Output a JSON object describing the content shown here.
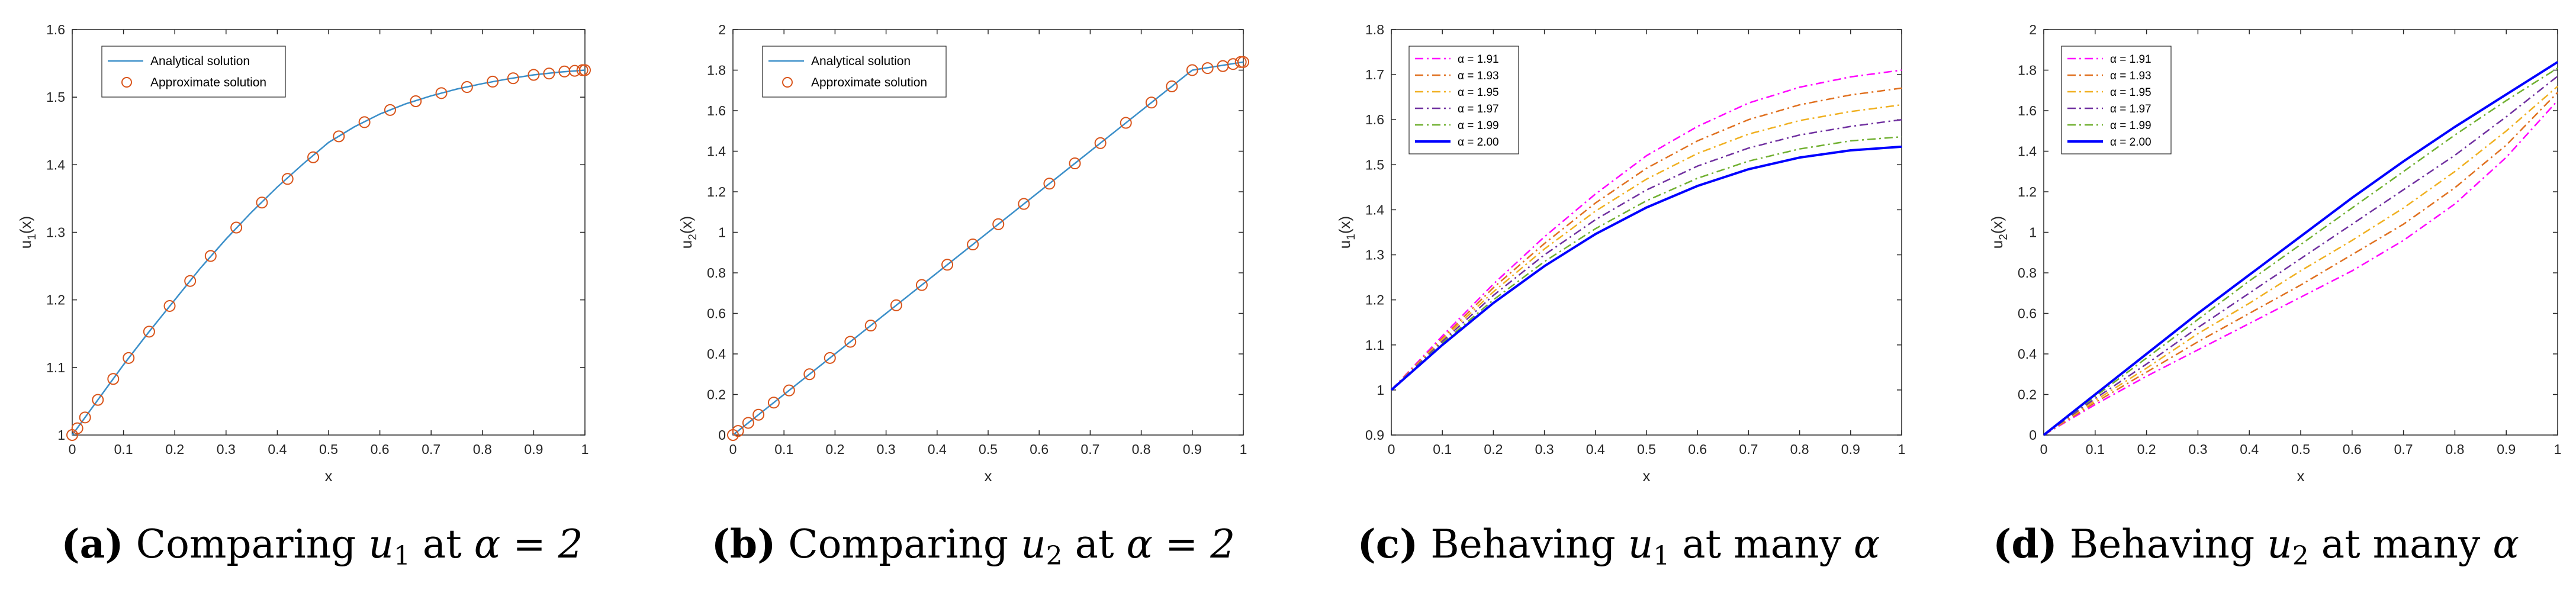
{
  "chart_data": [
    {
      "type": "line",
      "id": "a",
      "xlabel": "x",
      "ylabel": "u_1(x)",
      "ylabel_main": "u",
      "ylabel_sub": "1",
      "ylabel_tail": "(x)",
      "xlim": [
        0,
        1
      ],
      "ylim": [
        1,
        1.6
      ],
      "xticks": [
        "0",
        "0.1",
        "0.2",
        "0.3",
        "0.4",
        "0.5",
        "0.6",
        "0.7",
        "0.8",
        "0.9",
        "1"
      ],
      "yticks": [
        "1",
        "1.1",
        "1.2",
        "1.3",
        "1.4",
        "1.5",
        "1.6"
      ],
      "legend": {
        "position": "top-left",
        "entries": [
          {
            "label": "Analytical solution",
            "style": "line",
            "color": "#3b8fc9"
          },
          {
            "label": "Approximate solution",
            "style": "circle",
            "color": "#d9541a"
          }
        ]
      },
      "series": [
        {
          "name": "Analytical solution",
          "style": "solid",
          "color": "#3b8fc9",
          "x": [
            0,
            0.05,
            0.1,
            0.15,
            0.2,
            0.25,
            0.3,
            0.35,
            0.4,
            0.45,
            0.5,
            0.55,
            0.6,
            0.65,
            0.7,
            0.75,
            0.8,
            0.85,
            0.9,
            0.95,
            1
          ],
          "y": [
            1,
            1.052,
            1.104,
            1.153,
            1.2,
            1.247,
            1.29,
            1.33,
            1.367,
            1.401,
            1.433,
            1.456,
            1.475,
            1.49,
            1.502,
            1.512,
            1.52,
            1.527,
            1.533,
            1.537,
            1.54
          ]
        },
        {
          "name": "Approximate solution",
          "style": "circle",
          "color": "#d9541a",
          "x": [
            0,
            0.01,
            0.025,
            0.05,
            0.08,
            0.11,
            0.15,
            0.19,
            0.23,
            0.27,
            0.32,
            0.37,
            0.42,
            0.47,
            0.52,
            0.57,
            0.62,
            0.67,
            0.72,
            0.77,
            0.82,
            0.86,
            0.9,
            0.93,
            0.96,
            0.98,
            0.995,
            1
          ],
          "y": [
            1,
            1.01,
            1.026,
            1.052,
            1.083,
            1.114,
            1.153,
            1.191,
            1.228,
            1.265,
            1.307,
            1.344,
            1.379,
            1.411,
            1.442,
            1.463,
            1.481,
            1.494,
            1.506,
            1.515,
            1.523,
            1.528,
            1.533,
            1.535,
            1.538,
            1.539,
            1.54,
            1.54
          ]
        }
      ]
    },
    {
      "type": "line",
      "id": "b",
      "xlabel": "x",
      "ylabel": "u_2(x)",
      "ylabel_main": "u",
      "ylabel_sub": "2",
      "ylabel_tail": "(x)",
      "xlim": [
        0,
        1
      ],
      "ylim": [
        0,
        2
      ],
      "xticks": [
        "0",
        "0.1",
        "0.2",
        "0.3",
        "0.4",
        "0.5",
        "0.6",
        "0.7",
        "0.8",
        "0.9",
        "1"
      ],
      "yticks": [
        "0",
        "0.2",
        "0.4",
        "0.6",
        "0.8",
        "1",
        "1.2",
        "1.4",
        "1.6",
        "1.8",
        "2"
      ],
      "legend": {
        "position": "top-left",
        "entries": [
          {
            "label": "Analytical solution",
            "style": "line",
            "color": "#3b8fc9"
          },
          {
            "label": "Approximate solution",
            "style": "circle",
            "color": "#d9541a"
          }
        ]
      },
      "series": [
        {
          "name": "Analytical solution",
          "style": "solid",
          "color": "#3b8fc9",
          "x": [
            0,
            0.1,
            0.2,
            0.3,
            0.4,
            0.5,
            0.6,
            0.7,
            0.8,
            0.9,
            1
          ],
          "y": [
            0,
            0.2,
            0.4,
            0.6,
            0.8,
            1,
            1.2,
            1.4,
            1.6,
            1.8,
            1.84
          ]
        },
        {
          "name": "Approximate solution",
          "style": "circle",
          "color": "#d9541a",
          "x": [
            0,
            0.01,
            0.03,
            0.05,
            0.08,
            0.11,
            0.15,
            0.19,
            0.23,
            0.27,
            0.32,
            0.37,
            0.42,
            0.47,
            0.52,
            0.57,
            0.62,
            0.67,
            0.72,
            0.77,
            0.82,
            0.86,
            0.9,
            0.93,
            0.96,
            0.98,
            0.995,
            1
          ],
          "y": [
            0,
            0.02,
            0.06,
            0.1,
            0.16,
            0.22,
            0.3,
            0.38,
            0.46,
            0.54,
            0.64,
            0.74,
            0.84,
            0.94,
            1.04,
            1.14,
            1.24,
            1.34,
            1.44,
            1.54,
            1.64,
            1.72,
            1.8,
            1.81,
            1.82,
            1.83,
            1.84,
            1.84
          ]
        }
      ]
    },
    {
      "type": "line",
      "id": "c",
      "xlabel": "x",
      "ylabel": "u_1(x)",
      "ylabel_main": "u",
      "ylabel_sub": "1",
      "ylabel_tail": "(x)",
      "xlim": [
        0,
        1
      ],
      "ylim": [
        0.9,
        1.8
      ],
      "xticks": [
        "0",
        "0.1",
        "0.2",
        "0.3",
        "0.4",
        "0.5",
        "0.6",
        "0.7",
        "0.8",
        "0.9",
        "1"
      ],
      "yticks": [
        "0.9",
        "1",
        "1.1",
        "1.2",
        "1.3",
        "1.4",
        "1.5",
        "1.6",
        "1.7",
        "1.8"
      ],
      "legend": {
        "position": "top-left",
        "entries": [
          {
            "label": "α = 1.91",
            "style": "dashdot",
            "color": "#ff00ff"
          },
          {
            "label": "α = 1.93",
            "style": "dashdot",
            "color": "#e0701f"
          },
          {
            "label": "α = 1.95",
            "style": "dashdot",
            "color": "#f0b020"
          },
          {
            "label": "α = 1.97",
            "style": "dashdot",
            "color": "#7030a0"
          },
          {
            "label": "α = 1.99",
            "style": "dashdot",
            "color": "#70b030"
          },
          {
            "label": "α = 2.00",
            "style": "solid",
            "color": "#0000ff"
          }
        ]
      },
      "series": [
        {
          "name": "α = 1.91",
          "style": "dashdot",
          "color": "#ff00ff",
          "x": [
            0,
            0.1,
            0.2,
            0.3,
            0.4,
            0.5,
            0.6,
            0.7,
            0.8,
            0.9,
            1
          ],
          "y": [
            1,
            1.12,
            1.235,
            1.34,
            1.435,
            1.52,
            1.585,
            1.637,
            1.672,
            1.695,
            1.71
          ]
        },
        {
          "name": "α = 1.93",
          "style": "dashdot",
          "color": "#e0701f",
          "x": [
            0,
            0.1,
            0.2,
            0.3,
            0.4,
            0.5,
            0.6,
            0.7,
            0.8,
            0.9,
            1
          ],
          "y": [
            1,
            1.115,
            1.227,
            1.325,
            1.415,
            1.492,
            1.553,
            1.6,
            1.633,
            1.655,
            1.67
          ]
        },
        {
          "name": "α = 1.95",
          "style": "dashdot",
          "color": "#f0b020",
          "x": [
            0,
            0.1,
            0.2,
            0.3,
            0.4,
            0.5,
            0.6,
            0.7,
            0.8,
            0.9,
            1
          ],
          "y": [
            1,
            1.112,
            1.218,
            1.313,
            1.397,
            1.468,
            1.525,
            1.568,
            1.598,
            1.618,
            1.633
          ]
        },
        {
          "name": "α = 1.97",
          "style": "dashdot",
          "color": "#7030a0",
          "x": [
            0,
            0.1,
            0.2,
            0.3,
            0.4,
            0.5,
            0.6,
            0.7,
            0.8,
            0.9,
            1
          ],
          "y": [
            1,
            1.108,
            1.21,
            1.3,
            1.378,
            1.444,
            1.497,
            1.537,
            1.566,
            1.585,
            1.6
          ]
        },
        {
          "name": "α = 1.99",
          "style": "dashdot",
          "color": "#70b030",
          "x": [
            0,
            0.1,
            0.2,
            0.3,
            0.4,
            0.5,
            0.6,
            0.7,
            0.8,
            0.9,
            1
          ],
          "y": [
            1,
            1.104,
            1.2,
            1.285,
            1.358,
            1.42,
            1.47,
            1.508,
            1.535,
            1.553,
            1.562
          ]
        },
        {
          "name": "α = 2.00",
          "style": "solid",
          "color": "#0000ff",
          "x": [
            0,
            0.1,
            0.2,
            0.3,
            0.4,
            0.5,
            0.6,
            0.7,
            0.8,
            0.9,
            1
          ],
          "y": [
            1,
            1.1,
            1.193,
            1.275,
            1.346,
            1.405,
            1.453,
            1.49,
            1.516,
            1.532,
            1.54
          ]
        }
      ]
    },
    {
      "type": "line",
      "id": "d",
      "xlabel": "x",
      "ylabel": "u_2(x)",
      "ylabel_main": "u",
      "ylabel_sub": "2",
      "ylabel_tail": "(x)",
      "xlim": [
        0,
        1
      ],
      "ylim": [
        0,
        2
      ],
      "xticks": [
        "0",
        "0.1",
        "0.2",
        "0.3",
        "0.4",
        "0.5",
        "0.6",
        "0.7",
        "0.8",
        "0.9",
        "1"
      ],
      "yticks": [
        "0",
        "0.2",
        "0.4",
        "0.6",
        "0.8",
        "1",
        "1.2",
        "1.4",
        "1.6",
        "1.8",
        "2"
      ],
      "legend": {
        "position": "top-left",
        "entries": [
          {
            "label": "α = 1.91",
            "style": "dashdot",
            "color": "#ff00ff"
          },
          {
            "label": "α = 1.93",
            "style": "dashdot",
            "color": "#e0701f"
          },
          {
            "label": "α = 1.95",
            "style": "dashdot",
            "color": "#f0b020"
          },
          {
            "label": "α = 1.97",
            "style": "dashdot",
            "color": "#7030a0"
          },
          {
            "label": "α = 1.99",
            "style": "dashdot",
            "color": "#70b030"
          },
          {
            "label": "α = 2.00",
            "style": "solid",
            "color": "#0000ff"
          }
        ]
      },
      "series": [
        {
          "name": "α = 1.91",
          "style": "dashdot",
          "color": "#ff00ff",
          "x": [
            0,
            0.1,
            0.2,
            0.3,
            0.4,
            0.5,
            0.6,
            0.7,
            0.8,
            0.9,
            1
          ],
          "y": [
            0,
            0.15,
            0.29,
            0.42,
            0.55,
            0.68,
            0.81,
            0.96,
            1.14,
            1.37,
            1.65
          ]
        },
        {
          "name": "α = 1.93",
          "style": "dashdot",
          "color": "#e0701f",
          "x": [
            0,
            0.1,
            0.2,
            0.3,
            0.4,
            0.5,
            0.6,
            0.7,
            0.8,
            0.9,
            1
          ],
          "y": [
            0,
            0.16,
            0.31,
            0.46,
            0.6,
            0.74,
            0.89,
            1.04,
            1.22,
            1.43,
            1.69
          ]
        },
        {
          "name": "α = 1.95",
          "style": "dashdot",
          "color": "#f0b020",
          "x": [
            0,
            0.1,
            0.2,
            0.3,
            0.4,
            0.5,
            0.6,
            0.7,
            0.8,
            0.9,
            1
          ],
          "y": [
            0,
            0.17,
            0.33,
            0.5,
            0.65,
            0.81,
            0.96,
            1.12,
            1.3,
            1.5,
            1.72
          ]
        },
        {
          "name": "α = 1.97",
          "style": "dashdot",
          "color": "#7030a0",
          "x": [
            0,
            0.1,
            0.2,
            0.3,
            0.4,
            0.5,
            0.6,
            0.7,
            0.8,
            0.9,
            1
          ],
          "y": [
            0,
            0.18,
            0.35,
            0.53,
            0.7,
            0.87,
            1.04,
            1.21,
            1.38,
            1.57,
            1.77
          ]
        },
        {
          "name": "α = 1.99",
          "style": "dashdot",
          "color": "#70b030",
          "x": [
            0,
            0.1,
            0.2,
            0.3,
            0.4,
            0.5,
            0.6,
            0.7,
            0.8,
            0.9,
            1
          ],
          "y": [
            0,
            0.19,
            0.38,
            0.57,
            0.76,
            0.94,
            1.12,
            1.3,
            1.48,
            1.65,
            1.81
          ]
        },
        {
          "name": "α = 2.00",
          "style": "solid",
          "color": "#0000ff",
          "x": [
            0,
            0.1,
            0.2,
            0.3,
            0.4,
            0.5,
            0.6,
            0.7,
            0.8,
            0.9,
            1
          ],
          "y": [
            0,
            0.2,
            0.4,
            0.6,
            0.79,
            0.98,
            1.17,
            1.35,
            1.52,
            1.68,
            1.84
          ]
        }
      ]
    }
  ],
  "captions": [
    {
      "letter": "(a)",
      "text_before": "Comparing",
      "var": "u",
      "sub": "1",
      "text_after": "at",
      "cond": "α = 2"
    },
    {
      "letter": "(b)",
      "text_before": "Comparing",
      "var": "u",
      "sub": "2",
      "text_after": "at",
      "cond": "α = 2"
    },
    {
      "letter": "(c)",
      "text_before": "Behaving",
      "var": "u",
      "sub": "1",
      "text_after": "at many",
      "cond": "α"
    },
    {
      "letter": "(d)",
      "text_before": "Behaving",
      "var": "u",
      "sub": "2",
      "text_after": "at many",
      "cond": "α"
    }
  ]
}
